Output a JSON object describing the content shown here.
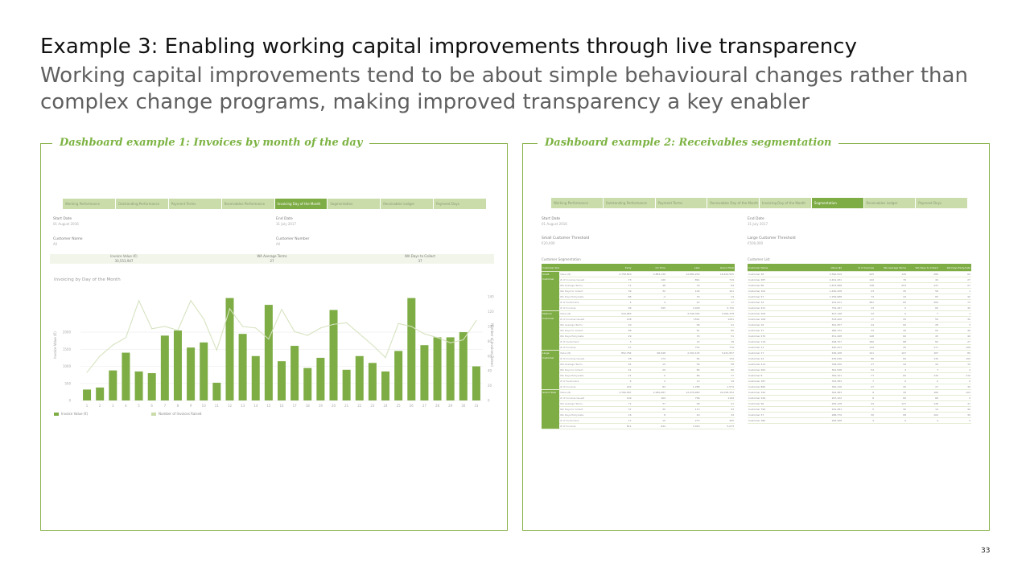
{
  "slide": {
    "title": "Example 3: Enabling working capital improvements through live transparency",
    "subtitle": "Working capital improvements tend to be about simple behavioural changes rather than complex change programs, making improved transparency a key enabler",
    "page_number": "33"
  },
  "dashboard1": {
    "title": "Dashboard example 1: Invoices by month of the day",
    "tabs": [
      {
        "label": "Working Performance",
        "active": false
      },
      {
        "label": "Outstanding Performance",
        "active": false
      },
      {
        "label": "Payment Terms",
        "active": false
      },
      {
        "label": "Receivables Performance",
        "active": false
      },
      {
        "label": "Invoicing Day of the Month",
        "active": true
      },
      {
        "label": "Segmentation",
        "active": false
      },
      {
        "label": "Receivables Ledger",
        "active": false
      },
      {
        "label": "Payment Days",
        "active": false
      }
    ],
    "start_date_label": "Start Date",
    "start_date_value": "01 August 2016",
    "end_date_label": "End Date",
    "end_date_value": "31 July 2017",
    "customer_name_label": "Customer Name",
    "customer_name_value": "All",
    "customer_number_label": "Customer Number",
    "customer_number_value": "All",
    "kpis": [
      {
        "label": "Invoice Value (€)",
        "value": "30,553,947"
      },
      {
        "label": "WA Average Terms",
        "value": "27"
      },
      {
        "label": "WA Days to Collect",
        "value": "37"
      }
    ],
    "chart_title": "Invoicing by Day of the Month",
    "legend_bar": "Invoice Value (€)",
    "legend_line": "Number of Invoices Raised"
  },
  "chart_data": {
    "type": "bar",
    "categories": [
      "1",
      "2",
      "3",
      "4",
      "5",
      "6",
      "7",
      "8",
      "9",
      "10",
      "11",
      "12",
      "13",
      "14",
      "15",
      "16",
      "17",
      "18",
      "19",
      "20",
      "21",
      "22",
      "23",
      "24",
      "25",
      "26",
      "27",
      "28",
      "29",
      "30",
      "31"
    ],
    "series": [
      {
        "name": "Invoice Value (€)",
        "type": "bar",
        "values": [
          320,
          380,
          880,
          1400,
          850,
          800,
          1900,
          2050,
          1550,
          1700,
          520,
          3000,
          1950,
          1300,
          2800,
          1150,
          1600,
          950,
          1250,
          2650,
          900,
          1300,
          1100,
          850,
          1450,
          3000,
          1620,
          1850,
          1850,
          2000,
          1000
        ]
      },
      {
        "name": "Number of Invoices Raised",
        "type": "line",
        "axis": "right",
        "values": [
          38,
          60,
          75,
          85,
          135,
          97,
          100,
          95,
          135,
          110,
          68,
          124,
          100,
          98,
          83,
          123,
          93,
          88,
          98,
          103,
          105,
          90,
          75,
          58,
          104,
          100,
          90,
          85,
          78,
          82,
          108
        ]
      }
    ],
    "ylabel": "Invoice Value (€)",
    "y2label": "Number of Invoices Raised",
    "ylim": [
      0,
      3250
    ],
    "yticks": [
      0,
      500,
      1000,
      1500,
      2000
    ],
    "y2lim": [
      0,
      150
    ],
    "y2ticks": [
      0,
      20,
      40,
      60,
      80,
      100,
      120,
      140
    ],
    "legend": "bottom-left",
    "grid": true
  },
  "dashboard2": {
    "title": "Dashboard example 2: Receivables segmentation",
    "tabs": [
      {
        "label": "Working Performance",
        "active": false
      },
      {
        "label": "Outstanding Performance",
        "active": false
      },
      {
        "label": "Payment Terms",
        "active": false
      },
      {
        "label": "Receivables Day of the Month",
        "active": false
      },
      {
        "label": "Invoicing Day of the Month",
        "active": false
      },
      {
        "label": "Segmentation",
        "active": true
      },
      {
        "label": "Receivables Ledger",
        "active": false
      },
      {
        "label": "Payment Days",
        "active": false
      }
    ],
    "start_date_label": "Start Date",
    "start_date_value": "01 August 2016",
    "end_date_label": "End Date",
    "end_date_value": "31 July 2017",
    "small_threshold_label": "Small Customer Threshold",
    "small_threshold_value": "€20,000",
    "large_threshold_label": "Large Customer Threshold",
    "large_threshold_value": "€500,000",
    "segmentation_title": "Customer Segmentation",
    "segmentation_headers": [
      "Customer Size",
      "",
      "Early",
      "On Time",
      "Late",
      "Grand Total"
    ],
    "segmentation_groups": [
      {
        "name": "Small Customer",
        "rows": [
          [
            "Value (€)",
            "2,758,820",
            "2,883,139",
            "12,682,200",
            "18,444,505"
          ],
          [
            "# of Invoices Issued",
            "73",
            "149",
            "891",
            "719"
          ],
          [
            "WA Average Terms",
            "71",
            "48",
            "76",
            "84"
          ],
          [
            "WA Days to Collect",
            "39",
            "32",
            "109",
            "101"
          ],
          [
            "WA Days Early/Late",
            "-86",
            "-2",
            "33",
            "14"
          ],
          [
            "# of Customers",
            "4",
            "4",
            "22",
            "17"
          ],
          [
            "# of Invoices",
            "96",
            "595",
            "2,028",
            "2,720"
          ]
        ]
      },
      {
        "name": "Medium Customer",
        "rows": [
          [
            "Value (€)",
            "544,983",
            "",
            "2,549,395",
            "3,094,378"
          ],
          [
            "# of Invoices Issued",
            "108",
            "",
            "1591",
            "1291"
          ],
          [
            "WA Average Terms",
            "20",
            "",
            "96",
            "41"
          ],
          [
            "WA Days to Collect",
            "88",
            "",
            "81",
            "85"
          ],
          [
            "WA Days Early/Late",
            "29",
            "",
            "33",
            "31"
          ],
          [
            "# of Customers",
            "3",
            "",
            "15",
            "18"
          ],
          [
            "# of Invoices",
            "27",
            "",
            "752",
            "779"
          ]
        ]
      },
      {
        "name": "Large Customer",
        "rows": [
          [
            "Value (€)",
            "852,784",
            "66,948",
            "2,302,105",
            "3,221,837"
          ],
          [
            "# of Invoices Issued",
            "28",
            "174",
            "84",
            "134"
          ],
          [
            "WA Average Terms",
            "81",
            "15",
            "56",
            "58"
          ],
          [
            "WA Days to Collect",
            "41",
            "29",
            "84",
            "66"
          ],
          [
            "WA Days Early/Late",
            "21",
            "0",
            "86",
            "17"
          ],
          [
            "# of Customers",
            "4",
            "2",
            "13",
            "19"
          ],
          [
            "# of Invoices",
            "202",
            "84",
            "1,288",
            "1,574"
          ]
        ]
      },
      {
        "name": "Grand Total",
        "rows": [
          [
            "Value (€)",
            "3,766,587",
            "2,950,087",
            "12,479,983",
            "24,078,353"
          ],
          [
            "# of Invoices Issued",
            "109",
            "164",
            "796",
            "1194"
          ],
          [
            "WA Average Terms",
            "71",
            "37",
            "98",
            "41"
          ],
          [
            "WA Days to Collect",
            "37",
            "30",
            "113",
            "93"
          ],
          [
            "WA Days Early/Late",
            "16",
            "8",
            "40",
            "34"
          ],
          [
            "# of Customers",
            "17",
            "15",
            "273",
            "305"
          ],
          [
            "# of Invoices",
            "811",
            "644",
            "3,020",
            "5,073"
          ]
        ]
      }
    ],
    "customer_list_title": "Customer List",
    "customer_headers": [
      "Customer Name",
      "Value (€)",
      "# of Invoices",
      "WA Average Terms",
      "WA Days to Collect",
      "WA Days Early/Late"
    ],
    "customer_rows": [
      [
        "Customer 28",
        "2,590,529",
        "205",
        "120",
        "280",
        "60"
      ],
      [
        "Customer 287",
        "2,401,431",
        "142",
        "70",
        "44",
        "27"
      ],
      [
        "Customer 86",
        "1,873,588",
        "138",
        "253",
        "247",
        "27"
      ],
      [
        "Customer 102",
        "1,430,228",
        "23",
        "45",
        "58",
        "1"
      ],
      [
        "Customer 27",
        "1,259,088",
        "74",
        "44",
        "83",
        "40"
      ],
      [
        "Customer 34",
        "912,411",
        "481",
        "60",
        "284",
        "73"
      ],
      [
        "Customer 221",
        "754,187",
        "23",
        "0",
        "60",
        "30"
      ],
      [
        "Customer 209",
        "627,148",
        "22",
        "0",
        "7",
        "1"
      ],
      [
        "Customer 108",
        "533,420",
        "17",
        "45",
        "50",
        "30"
      ],
      [
        "Customer 16",
        "491,357",
        "44",
        "60",
        "28",
        "3"
      ],
      [
        "Customer 37",
        "480,722",
        "33",
        "40",
        "50",
        "46"
      ],
      [
        "Customer 270",
        "451,448",
        "148",
        "60",
        "45",
        "40"
      ],
      [
        "Customer 116",
        "448,727",
        "180",
        "88",
        "82",
        "27"
      ],
      [
        "Customer 11",
        "440,223",
        "144",
        "45",
        "171",
        "108"
      ],
      [
        "Customer 17",
        "436,108",
        "101",
        "107",
        "187",
        "80"
      ],
      [
        "Customer 24",
        "435,046",
        "86",
        "60",
        "130",
        "100"
      ],
      [
        "Customer 213",
        "328,330",
        "27",
        "44",
        "44",
        "10"
      ],
      [
        "Customer 262",
        "301,548",
        "54",
        "4",
        "7",
        "2"
      ],
      [
        "Customer 8",
        "300,101",
        "77",
        "60",
        "130",
        "110"
      ],
      [
        "Customer 187",
        "323,383",
        "7",
        "0",
        "0",
        "0"
      ],
      [
        "Customer 890",
        "300,126",
        "27",
        "45",
        "27",
        "30"
      ],
      [
        "Customer 192",
        "302,383",
        "9",
        "30",
        "180",
        "103"
      ],
      [
        "Customer 249",
        "297,102",
        "8",
        "60",
        "66",
        "4"
      ],
      [
        "Customer 66",
        "295,128",
        "44",
        "127",
        "148",
        "37"
      ],
      [
        "Customer 790",
        "291,281",
        "5",
        "40",
        "14",
        "40"
      ],
      [
        "Customer 37",
        "286,779",
        "30",
        "68",
        "102",
        "30"
      ],
      [
        "Customer 380",
        "283,268",
        "3",
        "0",
        "4",
        "2"
      ]
    ]
  }
}
